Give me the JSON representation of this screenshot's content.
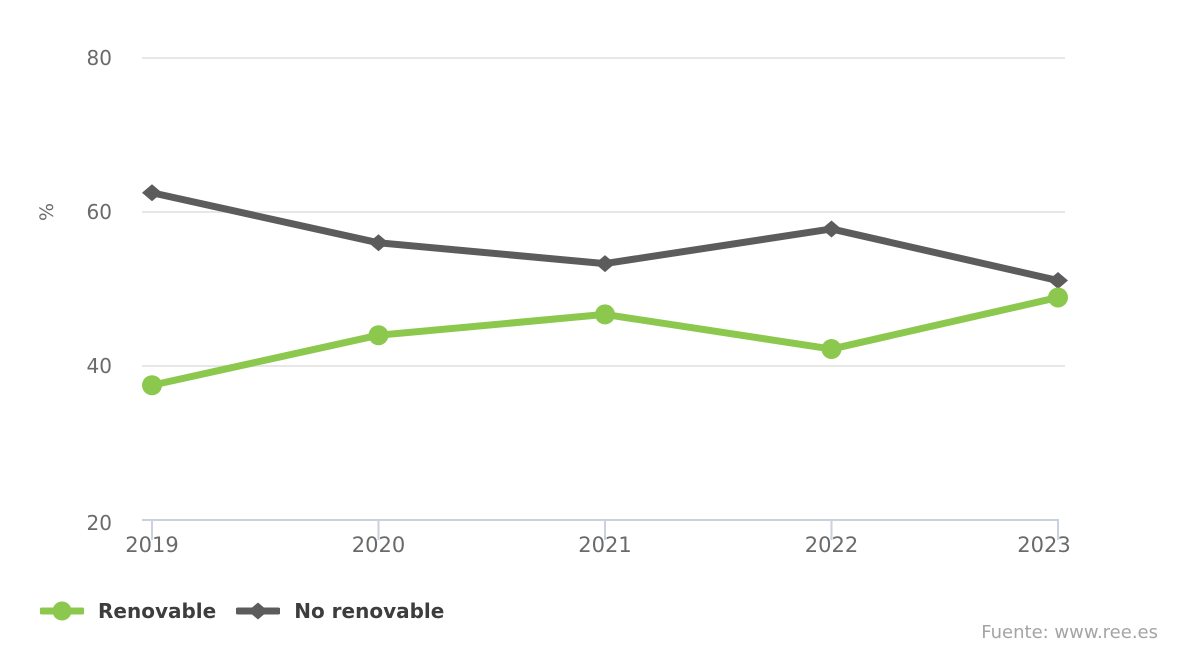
{
  "chart_data": {
    "type": "line",
    "title": "",
    "x": [
      "2019",
      "2020",
      "2021",
      "2022",
      "2023"
    ],
    "series": [
      {
        "name": "Renovable",
        "values": [
          37.5,
          44.0,
          46.7,
          42.2,
          48.9
        ],
        "color": "#8cc84e",
        "marker": "circle"
      },
      {
        "name": "No renovable",
        "values": [
          62.5,
          56.0,
          53.3,
          57.8,
          51.1
        ],
        "color": "#5c5c5c",
        "marker": "diamond"
      }
    ],
    "xlabel": "",
    "ylabel": "%",
    "y_ticks": [
      20,
      40,
      60,
      80
    ],
    "ylim": [
      20,
      80
    ],
    "grid": "horizontal-only",
    "legend_position": "bottom-left"
  },
  "axis_style": {
    "tick_label_color": "#6a6a6a",
    "axis_line_color": "#c9d2de",
    "gridline_color": "#e7e7e7"
  },
  "source": {
    "label": "Fuente: www.ree.es"
  }
}
